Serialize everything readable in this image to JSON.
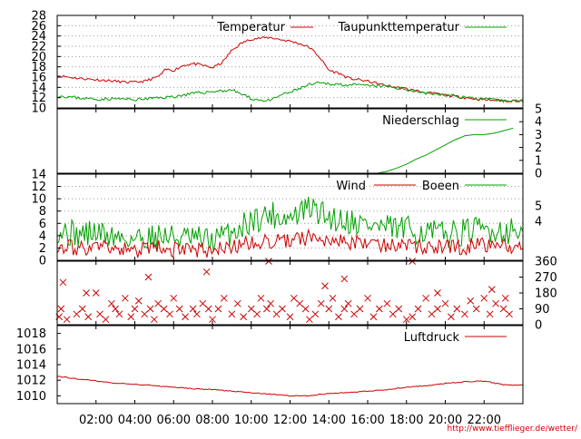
{
  "credit": "http://www.tiefflieger.de/wetter/",
  "colors": {
    "red": "#cc0000",
    "green": "#00a000",
    "grid": "#9a9a9a",
    "axis": "#000000"
  },
  "chart_data": [
    {
      "type": "line",
      "panel": "temperature",
      "ylim": [
        10,
        28
      ],
      "y_ticks": [
        "10",
        "12",
        "14",
        "16",
        "18",
        "20",
        "22",
        "24",
        "26",
        "28"
      ],
      "grid": true,
      "series": [
        {
          "name": "Temperatur",
          "color": "#cc0000",
          "x_hours": [
            0,
            1,
            2,
            3,
            3.5,
            4,
            4.5,
            5,
            5.3,
            5.6,
            6,
            6.5,
            7,
            7.5,
            8,
            8.5,
            9,
            9.5,
            10,
            10.5,
            11,
            11.5,
            12,
            12.5,
            13,
            13.5,
            14,
            14.5,
            15,
            16,
            17,
            18,
            19,
            20,
            21,
            22,
            23
          ],
          "values": [
            16.3,
            15.8,
            15.5,
            15.2,
            15.0,
            15.0,
            15.2,
            15.8,
            16.3,
            17.5,
            17.3,
            18.3,
            18.6,
            18.3,
            17.8,
            18.8,
            21.2,
            22.6,
            23.4,
            23.6,
            23.7,
            23.3,
            23.0,
            22.5,
            21.8,
            20.0,
            17.3,
            16.8,
            15.8,
            15.2,
            14.3,
            13.7,
            13.0,
            12.5,
            12.0,
            11.6,
            11.4
          ]
        },
        {
          "name": "Taupunkttemperatur",
          "color": "#00a000",
          "x_hours": [
            0,
            1,
            2,
            3,
            4,
            5,
            6,
            7,
            8,
            9,
            9.5,
            10,
            10.5,
            11,
            11.5,
            12,
            12.5,
            13,
            13.5,
            14,
            15,
            16,
            17,
            18,
            19,
            20,
            21,
            22,
            23
          ],
          "values": [
            12.4,
            12.0,
            11.7,
            11.8,
            11.6,
            11.9,
            12.2,
            12.8,
            13.2,
            13.5,
            12.7,
            11.8,
            11.5,
            11.4,
            12.5,
            13.0,
            13.8,
            14.5,
            14.8,
            14.7,
            14.5,
            14.3,
            14.2,
            13.6,
            12.9,
            12.5,
            12.1,
            11.7,
            11.4
          ]
        }
      ]
    },
    {
      "type": "line",
      "panel": "precipitation",
      "ylim": [
        0,
        5
      ],
      "y_ticks": [
        "0",
        "1",
        "2",
        "3",
        "4",
        "5"
      ],
      "series": [
        {
          "name": "Niederschlag",
          "color": "#00a000",
          "x_hours": [
            0,
            16.5,
            17,
            17.5,
            18,
            18.5,
            19,
            19.5,
            20,
            20.5,
            21,
            21.5,
            22,
            22.5,
            23,
            23.5
          ],
          "values": [
            0,
            0,
            0.15,
            0.4,
            0.7,
            1.1,
            1.4,
            1.8,
            2.2,
            2.6,
            2.9,
            3.0,
            3.0,
            3.1,
            3.3,
            3.5
          ]
        }
      ]
    },
    {
      "type": "line",
      "panel": "wind",
      "ylim": [
        0,
        14
      ],
      "y_ticks_left": [
        "0",
        "2",
        "4",
        "6",
        "8",
        "10",
        "12",
        "14"
      ],
      "y_ticks_right": [
        "4",
        "5"
      ],
      "series": [
        {
          "name": "Wind",
          "color": "#cc0000",
          "x_hours": [
            0,
            1,
            2,
            3,
            4,
            5,
            6,
            7,
            8,
            9,
            10,
            11,
            12,
            13,
            14,
            15,
            16,
            17,
            18,
            19,
            20,
            21,
            22,
            23
          ],
          "values": [
            2.5,
            2.0,
            2.2,
            1.8,
            1.6,
            2.0,
            1.8,
            1.6,
            1.4,
            2.2,
            2.8,
            3.2,
            3.0,
            3.8,
            3.4,
            3.0,
            2.8,
            2.6,
            2.4,
            2.2,
            2.0,
            2.2,
            2.6,
            2.4
          ]
        },
        {
          "name": "Boeen",
          "color": "#00a000",
          "x_hours": [
            0,
            1,
            2,
            3,
            4,
            5,
            6,
            7,
            8,
            9,
            10,
            11,
            12,
            13,
            14,
            15,
            16,
            17,
            18,
            19,
            20,
            21,
            22,
            23
          ],
          "values": [
            5.0,
            4.2,
            4.5,
            3.8,
            3.5,
            4.0,
            3.8,
            3.4,
            3.2,
            4.5,
            6.5,
            7.5,
            6.8,
            8.5,
            7.0,
            6.5,
            5.8,
            5.2,
            5.0,
            4.6,
            4.2,
            4.6,
            5.0,
            4.8
          ]
        }
      ]
    },
    {
      "type": "scatter",
      "panel": "wind-direction",
      "ylim": [
        0,
        360
      ],
      "y_ticks": [
        "0",
        "90",
        "180",
        "270",
        "360"
      ],
      "series": [
        {
          "name": "",
          "color": "#cc0000",
          "x_hours": [
            0.1,
            0.2,
            0.5,
            1.0,
            1.3,
            1.6,
            2.0,
            2.2,
            2.5,
            2.8,
            3.0,
            3.2,
            3.5,
            3.8,
            4.0,
            4.2,
            4.5,
            4.8,
            5.0,
            5.2,
            5.5,
            5.8,
            6.0,
            6.3,
            6.6,
            7.0,
            7.2,
            7.5,
            7.8,
            8.0,
            8.3,
            8.6,
            9.0,
            9.3,
            9.6,
            10.0,
            10.3,
            10.5,
            10.8,
            11.0,
            11.3,
            11.6,
            12.0,
            12.2,
            12.5,
            12.8,
            13.0,
            13.3,
            13.6,
            14.0,
            14.2,
            14.5,
            14.8,
            15.0,
            15.3,
            15.6,
            16.0,
            16.3,
            16.6,
            17.0,
            17.3,
            17.6,
            18.0,
            18.3,
            18.6,
            19.0,
            19.3,
            19.6,
            20.0,
            20.3,
            20.6,
            21.0,
            21.3,
            21.6,
            22.0,
            22.3,
            22.6,
            23.0,
            23.3,
            0.3,
            1.5,
            4.7,
            7.7,
            10.9,
            13.8,
            14.8,
            18.3,
            19.6,
            22.4,
            23.1
          ],
          "values": [
            45,
            90,
            30,
            60,
            90,
            45,
            180,
            60,
            30,
            120,
            90,
            60,
            150,
            45,
            90,
            135,
            60,
            90,
            30,
            120,
            90,
            60,
            150,
            90,
            45,
            90,
            60,
            120,
            90,
            30,
            90,
            150,
            60,
            120,
            45,
            90,
            60,
            150,
            90,
            120,
            60,
            90,
            45,
            150,
            120,
            90,
            30,
            60,
            120,
            90,
            150,
            45,
            90,
            120,
            60,
            90,
            150,
            45,
            90,
            120,
            60,
            90,
            30,
            45,
            90,
            150,
            60,
            90,
            120,
            45,
            90,
            60,
            135,
            90,
            150,
            60,
            120,
            90,
            60,
            240,
            180,
            270,
            300,
            360,
            220,
            260,
            360,
            180,
            200,
            150
          ]
        }
      ]
    },
    {
      "type": "line",
      "panel": "pressure",
      "ylim": [
        1009,
        1019
      ],
      "y_ticks": [
        "1010",
        "1012",
        "1014",
        "1016",
        "1018"
      ],
      "x_ticks": [
        "02:00",
        "04:00",
        "06:00",
        "08:00",
        "10:00",
        "12:00",
        "14:00",
        "16:00",
        "18:00",
        "20:00",
        "22:00"
      ],
      "series": [
        {
          "name": "Luftdruck",
          "color": "#cc0000",
          "x_hours": [
            0,
            1,
            2,
            3,
            4,
            5,
            6,
            7,
            8,
            9,
            10,
            11,
            12,
            13,
            14,
            15,
            16,
            17,
            18,
            19,
            20,
            21,
            22,
            23
          ],
          "values": [
            1012.5,
            1012.2,
            1011.9,
            1011.6,
            1011.5,
            1011.3,
            1011.1,
            1010.9,
            1010.8,
            1010.6,
            1010.4,
            1010.2,
            1010.0,
            1010.0,
            1010.3,
            1010.4,
            1010.6,
            1010.8,
            1011.1,
            1011.3,
            1011.6,
            1011.8,
            1011.9,
            1011.4
          ]
        }
      ]
    }
  ]
}
